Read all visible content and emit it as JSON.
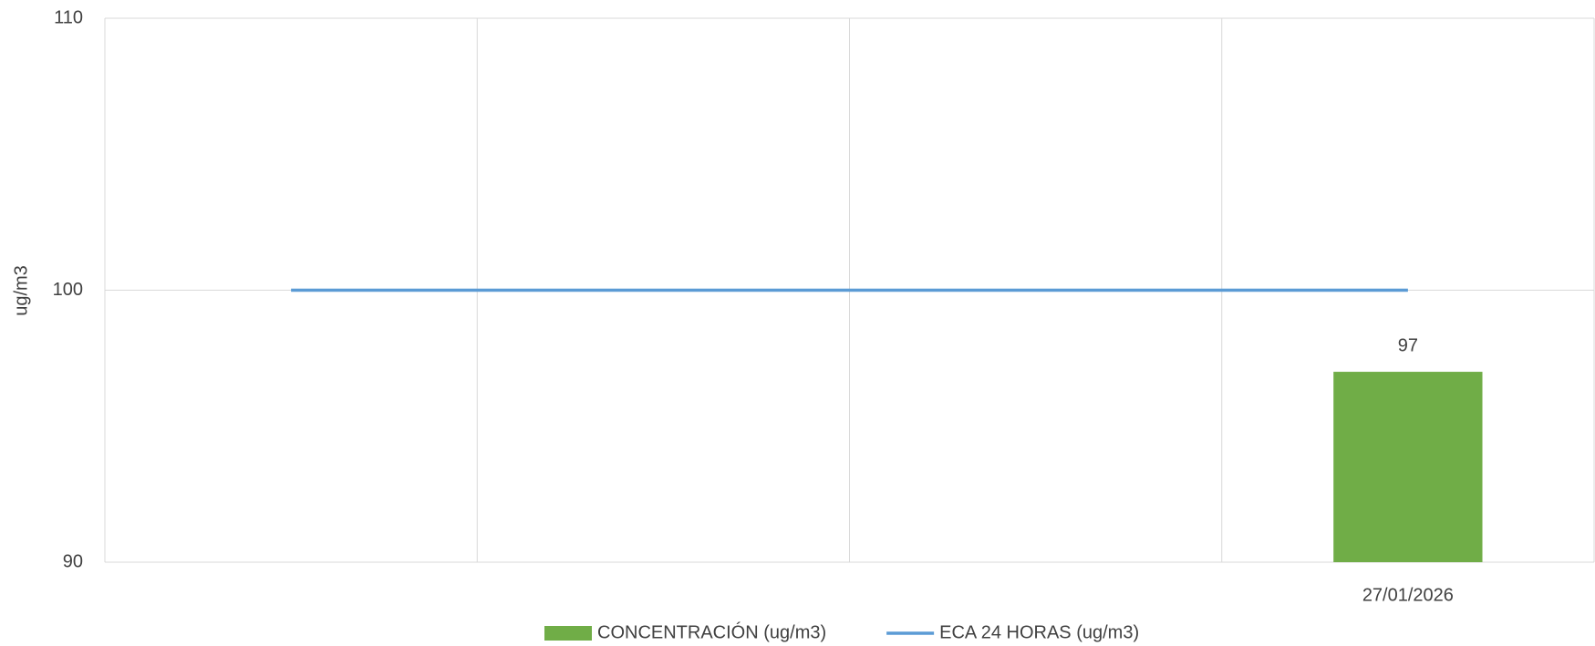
{
  "chart_data": {
    "type": "bar",
    "y_label": "ug/m3",
    "categories": [
      null,
      null,
      null,
      "27/01/2026"
    ],
    "series": [
      {
        "name": "CONCENTRACIÓN (ug/m3)",
        "type": "bar",
        "color": "#70ad47",
        "values": [
          null,
          null,
          null,
          97
        ]
      },
      {
        "name": "ECA 24 HORAS (ug/m3)",
        "type": "line",
        "color": "#5b9bd5",
        "values": [
          100,
          100,
          100,
          100
        ]
      }
    ],
    "ylim": [
      90,
      110
    ],
    "yticks": [
      90,
      100,
      110
    ],
    "grid": true,
    "legend": "bottom"
  }
}
